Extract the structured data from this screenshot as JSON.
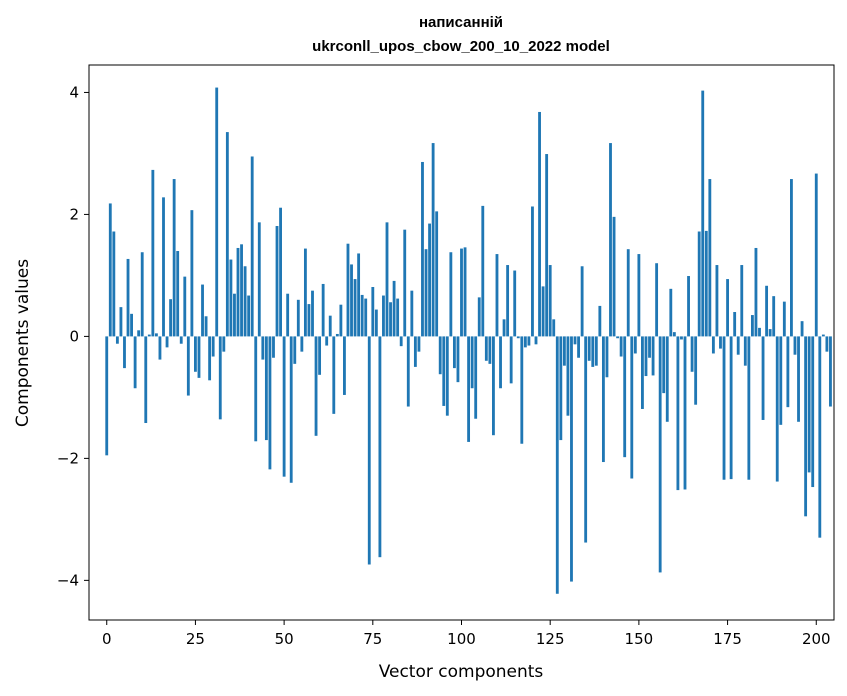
{
  "chart_data": {
    "type": "bar",
    "title": "написанній",
    "subtitle": "ukrconll_upos_cbow_200_10_2022 model",
    "xlabel": "Vector components",
    "ylabel": "Components values",
    "xlim": [
      -5,
      205
    ],
    "ylim": [
      -4.65,
      4.45
    ],
    "xticks": [
      0,
      25,
      50,
      75,
      100,
      125,
      150,
      175,
      200
    ],
    "yticks": [
      -4,
      -2,
      0,
      2,
      4
    ],
    "bar_color": "#1f77b4",
    "grid": false,
    "values": [
      -1.95,
      2.18,
      1.72,
      -0.12,
      0.48,
      -0.52,
      1.27,
      0.37,
      -0.85,
      0.1,
      1.38,
      -1.42,
      0.03,
      2.73,
      0.05,
      -0.38,
      2.28,
      -0.18,
      0.61,
      2.58,
      1.4,
      -0.12,
      0.98,
      -0.97,
      2.07,
      -0.58,
      -0.68,
      0.85,
      0.33,
      -0.72,
      -0.33,
      4.08,
      -1.36,
      -0.25,
      3.35,
      1.26,
      0.7,
      1.45,
      1.51,
      1.15,
      0.67,
      2.95,
      -1.72,
      1.87,
      -0.38,
      -1.7,
      -2.18,
      -0.35,
      1.81,
      2.11,
      -2.3,
      0.7,
      -2.4,
      -0.45,
      0.6,
      -0.25,
      1.44,
      0.53,
      0.75,
      -1.63,
      -0.63,
      0.86,
      -0.15,
      0.34,
      -1.27,
      0.04,
      0.52,
      -0.96,
      1.52,
      1.18,
      0.94,
      1.36,
      0.68,
      0.62,
      -3.74,
      0.81,
      0.44,
      -3.62,
      0.67,
      1.87,
      0.56,
      0.91,
      0.62,
      -0.16,
      1.75,
      -1.15,
      0.75,
      -0.5,
      -0.25,
      2.86,
      1.43,
      1.85,
      3.17,
      2.05,
      -0.62,
      -1.14,
      -1.3,
      1.38,
      -0.52,
      -0.75,
      1.44,
      1.46,
      -1.73,
      -0.85,
      -1.35,
      0.64,
      2.14,
      -0.4,
      -0.45,
      -1.62,
      1.35,
      -0.85,
      0.28,
      1.17,
      -0.77,
      1.08,
      -0.03,
      -1.76,
      -0.18,
      -0.15,
      2.13,
      -0.13,
      3.68,
      0.82,
      2.99,
      1.17,
      0.28,
      -4.22,
      -1.7,
      -0.48,
      -1.3,
      -4.02,
      -0.13,
      -0.35,
      1.15,
      -3.38,
      -0.4,
      -0.5,
      -0.48,
      0.5,
      -2.06,
      -0.67,
      3.17,
      1.96,
      -0.03,
      -0.33,
      -1.98,
      1.43,
      -2.33,
      -0.28,
      1.35,
      -1.19,
      -0.65,
      -0.35,
      -0.64,
      1.2,
      -3.87,
      -0.93,
      -1.4,
      0.78,
      0.07,
      -2.52,
      -0.05,
      -2.51,
      0.99,
      -0.58,
      -1.12,
      1.72,
      4.03,
      1.73,
      2.58,
      -0.28,
      1.17,
      -0.2,
      -2.35,
      0.94,
      -2.34,
      0.4,
      -0.3,
      1.17,
      -0.48,
      -2.35,
      0.35,
      1.45,
      0.14,
      -1.37,
      0.83,
      0.12,
      0.66,
      -2.38,
      -1.45,
      0.57,
      -1.16,
      2.58,
      -0.3,
      -1.4,
      0.25,
      -2.95,
      -2.23,
      -2.47,
      2.67,
      -3.3,
      0.03,
      -0.25,
      -1.15
    ]
  }
}
